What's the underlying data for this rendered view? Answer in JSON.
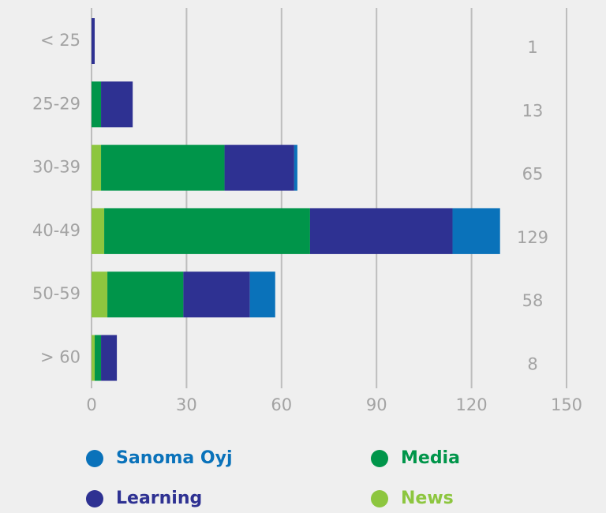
{
  "chart_data": {
    "type": "stacked_bar",
    "orientation": "horizontal",
    "categories": [
      "< 25",
      "25-29",
      "30-39",
      "40-49",
      "50-59",
      "> 60"
    ],
    "series": [
      {
        "name": "News",
        "color": "#8dc63f",
        "values": [
          0,
          0,
          3,
          4,
          5,
          1
        ]
      },
      {
        "name": "Media",
        "color": "#00954a",
        "values": [
          0,
          3,
          39,
          65,
          24,
          2
        ]
      },
      {
        "name": "Learning",
        "color": "#2e3192",
        "values": [
          1,
          10,
          22,
          45,
          21,
          5
        ]
      },
      {
        "name": "Sanoma Oyj",
        "color": "#0a72ba",
        "values": [
          0,
          0,
          1,
          15,
          8,
          0
        ]
      }
    ],
    "totals": [
      1,
      13,
      65,
      129,
      58,
      8
    ],
    "xlim": [
      0,
      150
    ],
    "xticks": [
      0,
      30,
      60,
      90,
      120,
      150
    ],
    "grid": true
  }
}
